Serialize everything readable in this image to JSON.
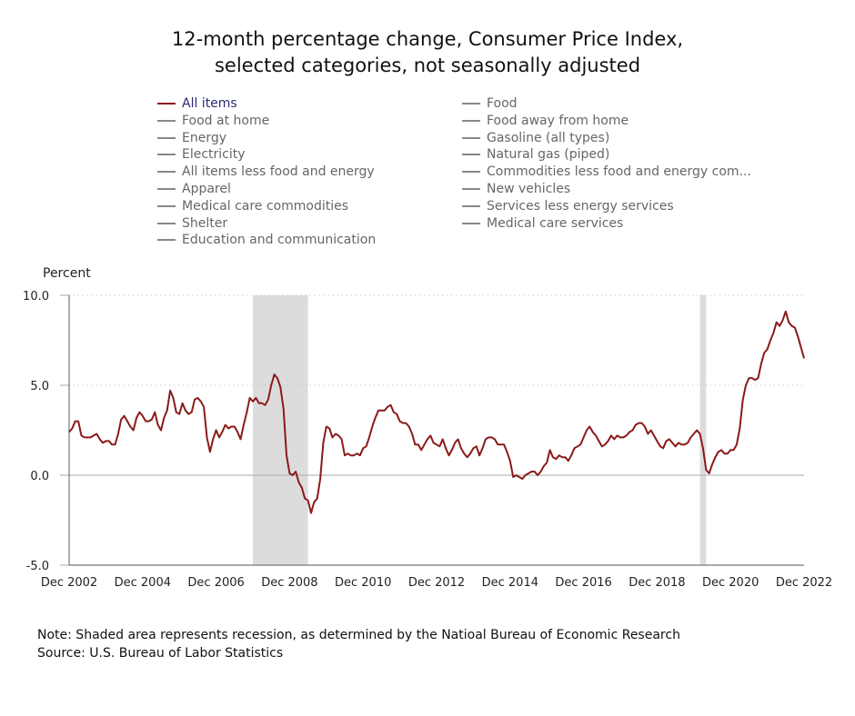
{
  "chart_data": {
    "type": "line",
    "title": "12-month percentage change, Consumer Price Index,",
    "subtitle": "selected categories, not seasonally adjusted",
    "ylabel": "Percent",
    "xlabel": "",
    "ylim": [
      -5.0,
      10.0
    ],
    "yticks": [
      "10.0",
      "5.0",
      "0.0",
      "-5.0"
    ],
    "ytick_values": [
      10,
      5,
      0,
      -5
    ],
    "xticks": [
      "Dec 2002",
      "Dec 2004",
      "Dec 2006",
      "Dec 2008",
      "Dec 2010",
      "Dec 2012",
      "Dec 2014",
      "Dec 2016",
      "Dec 2018",
      "Dec 2020",
      "Dec 2022"
    ],
    "x_start": "Dec 2002",
    "x_end": "Dec 2022",
    "grid": "horizontal dotted",
    "legend_placement": "top",
    "recessions": [
      {
        "start": "Dec 2007",
        "end": "Jun 2009"
      },
      {
        "start": "Feb 2020",
        "end": "Apr 2020"
      }
    ],
    "legend": [
      {
        "name": "All items",
        "active": true
      },
      {
        "name": "Food at home"
      },
      {
        "name": "Energy"
      },
      {
        "name": "Electricity"
      },
      {
        "name": "All items less food and energy"
      },
      {
        "name": "Apparel"
      },
      {
        "name": "Medical care commodities"
      },
      {
        "name": "Shelter"
      },
      {
        "name": "Education and communication"
      },
      {
        "name": "Food"
      },
      {
        "name": "Food away from home"
      },
      {
        "name": "Gasoline (all types)"
      },
      {
        "name": "Natural gas (piped)"
      },
      {
        "name": "Commodities less food and energy com..."
      },
      {
        "name": "New vehicles"
      },
      {
        "name": "Services less energy services"
      },
      {
        "name": "Medical care services"
      }
    ],
    "series": [
      {
        "name": "All items",
        "color": "#8b1a1a",
        "frequency": "monthly",
        "values": [
          2.4,
          2.6,
          3.0,
          3.0,
          2.2,
          2.1,
          2.1,
          2.1,
          2.2,
          2.3,
          2.0,
          1.8,
          1.9,
          1.9,
          1.7,
          1.7,
          2.3,
          3.1,
          3.3,
          3.0,
          2.7,
          2.5,
          3.2,
          3.5,
          3.3,
          3.0,
          3.0,
          3.1,
          3.5,
          2.8,
          2.5,
          3.2,
          3.6,
          4.7,
          4.3,
          3.5,
          3.4,
          4.0,
          3.6,
          3.4,
          3.5,
          4.2,
          4.3,
          4.1,
          3.8,
          2.1,
          1.3,
          2.0,
          2.5,
          2.1,
          2.4,
          2.8,
          2.6,
          2.7,
          2.7,
          2.4,
          2.0,
          2.8,
          3.5,
          4.3,
          4.1,
          4.3,
          4.0,
          4.0,
          3.9,
          4.2,
          5.0,
          5.6,
          5.4,
          4.9,
          3.7,
          1.1,
          0.1,
          0.0,
          0.2,
          -0.4,
          -0.7,
          -1.3,
          -1.4,
          -2.1,
          -1.5,
          -1.3,
          -0.2,
          1.8,
          2.7,
          2.6,
          2.1,
          2.3,
          2.2,
          2.0,
          1.1,
          1.2,
          1.1,
          1.1,
          1.2,
          1.1,
          1.5,
          1.6,
          2.1,
          2.7,
          3.2,
          3.6,
          3.6,
          3.6,
          3.8,
          3.9,
          3.5,
          3.4,
          3.0,
          2.9,
          2.9,
          2.7,
          2.3,
          1.7,
          1.7,
          1.4,
          1.7,
          2.0,
          2.2,
          1.8,
          1.7,
          1.6,
          2.0,
          1.5,
          1.1,
          1.4,
          1.8,
          2.0,
          1.5,
          1.2,
          1.0,
          1.2,
          1.5,
          1.6,
          1.1,
          1.5,
          2.0,
          2.1,
          2.1,
          2.0,
          1.7,
          1.7,
          1.7,
          1.3,
          0.8,
          -0.1,
          0.0,
          -0.1,
          -0.2,
          0.0,
          0.1,
          0.2,
          0.2,
          0.0,
          0.2,
          0.5,
          0.7,
          1.4,
          1.0,
          0.9,
          1.1,
          1.0,
          1.0,
          0.8,
          1.1,
          1.5,
          1.6,
          1.7,
          2.1,
          2.5,
          2.7,
          2.4,
          2.2,
          1.9,
          1.6,
          1.7,
          1.9,
          2.2,
          2.0,
          2.2,
          2.1,
          2.1,
          2.2,
          2.4,
          2.5,
          2.8,
          2.9,
          2.9,
          2.7,
          2.3,
          2.5,
          2.2,
          1.9,
          1.6,
          1.5,
          1.9,
          2.0,
          1.8,
          1.6,
          1.8,
          1.7,
          1.7,
          1.8,
          2.1,
          2.3,
          2.5,
          2.3,
          1.5,
          0.3,
          0.1,
          0.6,
          1.0,
          1.3,
          1.4,
          1.2,
          1.2,
          1.4,
          1.4,
          1.7,
          2.6,
          4.2,
          5.0,
          5.4,
          5.4,
          5.3,
          5.4,
          6.2,
          6.8,
          7.0,
          7.5,
          7.9,
          8.5,
          8.3,
          8.6,
          9.1,
          8.5,
          8.3,
          8.2,
          7.7,
          7.1,
          6.5
        ]
      }
    ],
    "colors": {
      "line": "#8b1a1a",
      "active_legend_text": "#2b2b7a",
      "inactive": "#777777",
      "recession": "#dcdcdc"
    }
  },
  "notes": {
    "note": "Note: Shaded area represents recession, as determined by the Natioal Bureau of Economic Research",
    "source": "Source: U.S. Bureau of Labor Statistics"
  }
}
